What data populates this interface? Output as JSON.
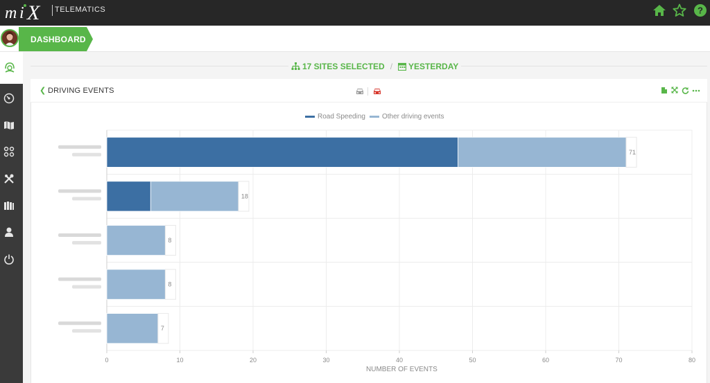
{
  "app": {
    "brand_sub": "TELEMATICS",
    "accent": "#58b649"
  },
  "topbar": {
    "icons": [
      "home-icon",
      "star-icon",
      "help-icon"
    ]
  },
  "sidebar": {
    "icons": [
      "headset-icon",
      "gauge-icon",
      "map-icon",
      "tracking-icon",
      "tools-icon",
      "reports-icon",
      "user-icon",
      "power-icon"
    ]
  },
  "header": {
    "dashboard_label": "DASHBOARD"
  },
  "selection": {
    "sites": "17 SITES SELECTED",
    "separator": "/",
    "period": "YESTERDAY"
  },
  "panel": {
    "title": "DRIVING EVENTS",
    "tool_icons": [
      "export-icon",
      "expand-icon",
      "refresh-icon",
      "more-icon"
    ],
    "view_icons": [
      "car-grey-icon",
      "car-red-icon"
    ]
  },
  "chart_data": {
    "type": "bar",
    "orientation": "horizontal",
    "stacked": true,
    "categories": [
      "",
      "",
      "",
      "",
      ""
    ],
    "series": [
      {
        "name": "Road Speeding",
        "color": "#3c6fa3",
        "values": [
          48,
          6,
          0,
          0,
          0
        ]
      },
      {
        "name": "Other driving events",
        "color": "#97b6d3",
        "values": [
          23,
          12,
          8,
          8,
          7
        ]
      }
    ],
    "totals": [
      71,
      18,
      8,
      8,
      7
    ],
    "xlabel": "NUMBER OF EVENTS",
    "ylabel": "",
    "xlim": [
      0,
      80
    ],
    "xticks": [
      0,
      10,
      20,
      30,
      40,
      50,
      60,
      70,
      80
    ],
    "legend_position": "top-center",
    "grid": true
  }
}
